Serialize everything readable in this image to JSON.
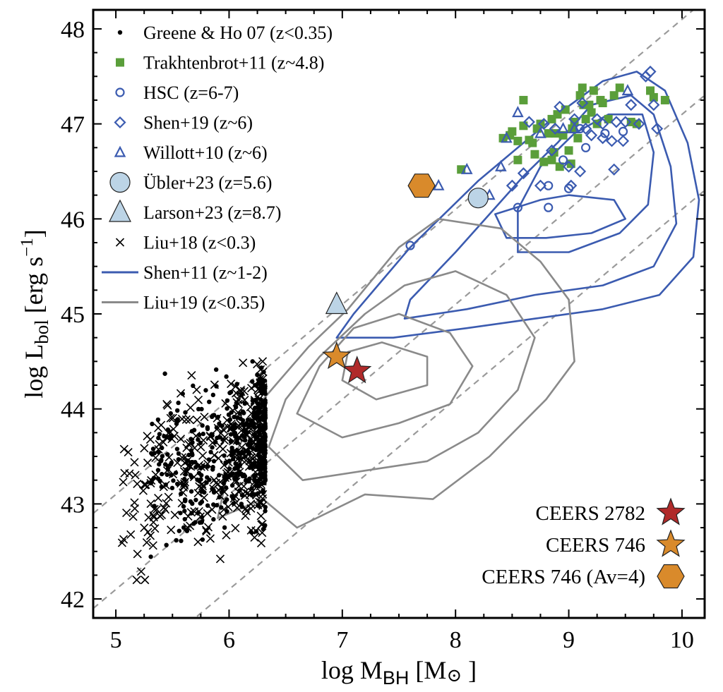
{
  "chart_data": {
    "type": "scatter",
    "xlabel": {
      "main": "log M",
      "sub": "BH",
      "unit": " [M",
      "sun": "⊙",
      "close": " ]"
    },
    "ylabel": {
      "main": "log L",
      "sub": "bol",
      "unit": " [erg s",
      "sup": "−1",
      "close": "]"
    },
    "xlim": [
      4.8,
      10.2
    ],
    "ylim": [
      41.8,
      48.2
    ],
    "xticks": [
      "5",
      "6",
      "7",
      "8",
      "9",
      "10"
    ],
    "yticks": [
      "42",
      "43",
      "44",
      "45",
      "46",
      "47",
      "48"
    ],
    "reference_lines": {
      "description": "dashed lines of constant Eddington ratio",
      "log_eddington_ratio": [
        0,
        -1,
        -2
      ],
      "color": "#9a9a9a"
    },
    "legend": {
      "position": "top-left",
      "entries": [
        {
          "label": "Greene & Ho 07 (z<0.35)",
          "marker": "dot",
          "color": "#000000"
        },
        {
          "label": "Trakhtenbrot+11 (z~4.8)",
          "marker": "square",
          "color": "#5a9e3a"
        },
        {
          "label": "HSC (z=6-7)",
          "marker": "circle-open",
          "color": "#3b5bb0"
        },
        {
          "label": "Shen+19 (z~6)",
          "marker": "diamond-open",
          "color": "#3b5bb0"
        },
        {
          "label": "Willott+10 (z~6)",
          "marker": "triangle-open",
          "color": "#3b5bb0"
        },
        {
          "label": "Übler+23 (z=5.6)",
          "marker": "circle-big",
          "color": "#bcd4e6"
        },
        {
          "label": "Larson+23 (z=8.7)",
          "marker": "triangle-big",
          "color": "#bcd4e6"
        },
        {
          "label": "Liu+18 (z<0.3)",
          "marker": "cross",
          "color": "#000000"
        },
        {
          "label": "Shen+11 (z~1-2)",
          "marker": "line",
          "color": "#3b5bb0"
        },
        {
          "label": "Liu+19 (z<0.35)",
          "marker": "line",
          "color": "#8a8a8a"
        }
      ]
    },
    "ceers_legend": [
      {
        "label": "CEERS 2782",
        "marker": "star",
        "color": "#b02a2a"
      },
      {
        "label": "CEERS 746",
        "marker": "star",
        "color": "#d98a2b"
      },
      {
        "label": "CEERS 746 (Av=4)",
        "marker": "hexagon",
        "color": "#d98a2b"
      }
    ],
    "highlight_points": [
      {
        "name": "CEERS 2782",
        "x": 7.13,
        "y": 44.4,
        "marker": "star",
        "color": "#b02a2a"
      },
      {
        "name": "CEERS 746",
        "x": 6.95,
        "y": 44.55,
        "marker": "star",
        "color": "#d98a2b"
      },
      {
        "name": "CEERS 746 (Av=4)",
        "x": 7.7,
        "y": 46.35,
        "marker": "hexagon",
        "color": "#d98a2b"
      },
      {
        "name": "Übler+23",
        "x": 8.2,
        "y": 46.22,
        "marker": "circle-big",
        "color": "#bcd4e6"
      },
      {
        "name": "Larson+23",
        "x": 6.95,
        "y": 45.1,
        "marker": "triangle-big",
        "color": "#bcd4e6"
      }
    ],
    "series": [
      {
        "name": "Trakhtenbrot+11 (z~4.8)",
        "marker": "square",
        "color": "#5a9e3a",
        "points": [
          [
            8.05,
            46.52
          ],
          [
            8.42,
            46.85
          ],
          [
            8.48,
            46.88
          ],
          [
            8.5,
            46.92
          ],
          [
            8.55,
            46.82
          ],
          [
            8.6,
            46.98
          ],
          [
            8.65,
            46.83
          ],
          [
            8.7,
            46.68
          ],
          [
            8.72,
            46.95
          ],
          [
            8.75,
            47.0
          ],
          [
            8.78,
            46.6
          ],
          [
            8.82,
            46.9
          ],
          [
            8.85,
            47.05
          ],
          [
            8.87,
            46.7
          ],
          [
            8.9,
            47.1
          ],
          [
            8.92,
            46.55
          ],
          [
            8.95,
            46.88
          ],
          [
            8.97,
            47.15
          ],
          [
            9.0,
            46.72
          ],
          [
            9.03,
            46.95
          ],
          [
            9.05,
            47.02
          ],
          [
            9.08,
            46.85
          ],
          [
            9.1,
            47.3
          ],
          [
            9.12,
            47.38
          ],
          [
            9.15,
            47.05
          ],
          [
            9.18,
            47.2
          ],
          [
            9.2,
            47.12
          ],
          [
            9.22,
            47.35
          ],
          [
            9.25,
            47.0
          ],
          [
            9.28,
            47.25
          ],
          [
            9.3,
            47.22
          ],
          [
            9.35,
            47.05
          ],
          [
            9.4,
            47.3
          ],
          [
            9.45,
            47.38
          ],
          [
            9.55,
            47.02
          ],
          [
            9.6,
            47.0
          ],
          [
            9.72,
            47.35
          ],
          [
            9.75,
            47.28
          ],
          [
            9.85,
            47.25
          ],
          [
            8.55,
            46.62
          ],
          [
            8.68,
            46.8
          ],
          [
            8.88,
            46.9
          ],
          [
            9.02,
            46.58
          ],
          [
            8.6,
            47.25
          ],
          [
            8.85,
            46.62
          ],
          [
            9.13,
            47.2
          ]
        ]
      },
      {
        "name": "HSC (z=6-7)",
        "marker": "circle-open",
        "color": "#3b5bb0",
        "points": [
          [
            7.6,
            45.72
          ],
          [
            8.55,
            46.12
          ],
          [
            8.82,
            46.12
          ],
          [
            8.82,
            46.35
          ],
          [
            9.0,
            46.32
          ],
          [
            8.95,
            46.62
          ],
          [
            9.1,
            46.95
          ],
          [
            9.32,
            46.9
          ],
          [
            9.48,
            46.92
          ],
          [
            9.15,
            46.75
          ]
        ]
      },
      {
        "name": "Shen+19 (z~6)",
        "marker": "diamond-open",
        "color": "#3b5bb0",
        "points": [
          [
            8.5,
            46.35
          ],
          [
            8.6,
            46.48
          ],
          [
            8.75,
            46.35
          ],
          [
            8.85,
            46.72
          ],
          [
            8.88,
            46.95
          ],
          [
            9.0,
            46.55
          ],
          [
            9.02,
            46.35
          ],
          [
            9.1,
            46.5
          ],
          [
            9.15,
            46.95
          ],
          [
            9.2,
            46.88
          ],
          [
            9.25,
            47.05
          ],
          [
            9.3,
            46.85
          ],
          [
            9.38,
            46.82
          ],
          [
            9.42,
            47.02
          ],
          [
            9.48,
            46.82
          ],
          [
            9.5,
            47.02
          ],
          [
            9.55,
            47.2
          ],
          [
            9.62,
            47.0
          ],
          [
            9.68,
            47.5
          ],
          [
            9.72,
            47.55
          ],
          [
            9.75,
            47.2
          ],
          [
            9.78,
            46.95
          ],
          [
            9.4,
            46.52
          ],
          [
            8.92,
            47.18
          ],
          [
            9.05,
            47.05
          ],
          [
            8.65,
            47.02
          ],
          [
            9.3,
            47.0
          ],
          [
            9.12,
            47.22
          ],
          [
            8.78,
            47.0
          ]
        ]
      },
      {
        "name": "Willott+10 (z~6)",
        "marker": "triangle-open",
        "color": "#3b5bb0",
        "points": [
          [
            7.85,
            46.35
          ],
          [
            8.1,
            46.52
          ],
          [
            8.3,
            46.25
          ],
          [
            8.4,
            46.55
          ],
          [
            8.45,
            46.85
          ],
          [
            8.55,
            47.12
          ],
          [
            9.52,
            47.35
          ],
          [
            8.95,
            46.95
          ],
          [
            9.05,
            46.95
          ],
          [
            8.75,
            46.9
          ]
        ]
      },
      {
        "name": "Greene & Ho 07 (z<0.35)",
        "marker": "dot",
        "color": "#000000",
        "generated": {
          "count": 450,
          "seed": 17,
          "x_range": [
            5.3,
            6.32
          ],
          "y_center": 43.55,
          "y_sigma": 0.55,
          "x_weight": "high-mass"
        }
      },
      {
        "name": "Liu+18 (z<0.3)",
        "marker": "cross",
        "color": "#000000",
        "generated": {
          "count": 360,
          "seed": 91,
          "x_range": [
            5.0,
            6.3
          ],
          "y_center": 43.5,
          "y_sigma": 0.6,
          "x_weight": "high-mass"
        }
      }
    ],
    "contours": {
      "Shen+11 (z~1-2)": {
        "color": "#3b5bb0",
        "levels": [
          [
            [
              7.6,
              45.7
            ],
            [
              7.9,
              46.05
            ],
            [
              8.2,
              46.4
            ],
            [
              8.55,
              46.75
            ],
            [
              8.9,
              47.1
            ],
            [
              9.3,
              47.45
            ],
            [
              9.6,
              47.55
            ],
            [
              9.85,
              47.35
            ],
            [
              10.05,
              46.8
            ],
            [
              10.15,
              46.2
            ],
            [
              10.1,
              45.6
            ],
            [
              9.8,
              45.2
            ],
            [
              9.3,
              45.05
            ],
            [
              8.7,
              44.95
            ],
            [
              8.1,
              44.85
            ],
            [
              7.45,
              44.75
            ],
            [
              6.95,
              44.75
            ],
            [
              7.1,
              45.0
            ],
            [
              7.35,
              45.35
            ]
          ],
          [
            [
              7.6,
              45.15
            ],
            [
              8.0,
              45.65
            ],
            [
              8.3,
              46.05
            ],
            [
              8.6,
              46.45
            ],
            [
              8.9,
              46.8
            ],
            [
              9.2,
              47.2
            ],
            [
              9.55,
              47.3
            ],
            [
              9.75,
              47.1
            ],
            [
              9.9,
              46.55
            ],
            [
              9.95,
              45.95
            ],
            [
              9.75,
              45.5
            ],
            [
              9.3,
              45.3
            ],
            [
              8.7,
              45.2
            ],
            [
              8.1,
              45.05
            ],
            [
              7.55,
              44.95
            ]
          ],
          [
            [
              8.55,
              45.65
            ],
            [
              8.55,
              46.1
            ],
            [
              8.75,
              46.55
            ],
            [
              9.05,
              46.9
            ],
            [
              9.35,
              47.1
            ],
            [
              9.65,
              47.1
            ],
            [
              9.75,
              46.7
            ],
            [
              9.7,
              46.15
            ],
            [
              9.45,
              45.85
            ],
            [
              9.0,
              45.65
            ]
          ],
          [
            [
              8.45,
              45.8
            ],
            [
              8.35,
              46.05
            ],
            [
              8.75,
              46.2
            ],
            [
              9.0,
              46.25
            ],
            [
              9.4,
              46.2
            ],
            [
              9.5,
              46.0
            ],
            [
              9.2,
              45.85
            ],
            [
              8.8,
              45.8
            ]
          ]
        ]
      },
      "Liu+19 (z<0.35)": {
        "color": "#8a8a8a",
        "levels": [
          [
            [
              5.9,
              42.85
            ],
            [
              6.3,
              43.05
            ],
            [
              6.6,
              42.75
            ],
            [
              7.2,
              43.1
            ],
            [
              7.8,
              43.05
            ],
            [
              8.3,
              43.5
            ],
            [
              8.8,
              44.1
            ],
            [
              9.05,
              44.5
            ],
            [
              9.0,
              45.15
            ],
            [
              8.75,
              45.55
            ],
            [
              8.4,
              45.9
            ],
            [
              7.85,
              46.0
            ],
            [
              7.5,
              45.7
            ],
            [
              7.05,
              45.05
            ],
            [
              6.7,
              44.65
            ],
            [
              6.3,
              44.1
            ],
            [
              6.0,
              43.4
            ]
          ],
          [
            [
              6.35,
              43.6
            ],
            [
              6.65,
              43.25
            ],
            [
              7.2,
              43.35
            ],
            [
              7.75,
              43.45
            ],
            [
              8.2,
              43.75
            ],
            [
              8.55,
              44.2
            ],
            [
              8.7,
              44.75
            ],
            [
              8.45,
              45.2
            ],
            [
              8.0,
              45.45
            ],
            [
              7.55,
              45.3
            ],
            [
              7.2,
              45.0
            ],
            [
              6.8,
              44.55
            ],
            [
              6.5,
              44.1
            ]
          ],
          [
            [
              6.6,
              43.95
            ],
            [
              7.0,
              43.7
            ],
            [
              7.5,
              43.85
            ],
            [
              7.95,
              44.05
            ],
            [
              8.15,
              44.45
            ],
            [
              7.95,
              44.8
            ],
            [
              7.5,
              45.0
            ],
            [
              7.1,
              44.85
            ],
            [
              6.8,
              44.45
            ]
          ],
          [
            [
              7.0,
              44.3
            ],
            [
              7.3,
              44.1
            ],
            [
              7.75,
              44.25
            ],
            [
              7.75,
              44.55
            ],
            [
              7.35,
              44.7
            ],
            [
              7.05,
              44.6
            ]
          ]
        ]
      }
    }
  }
}
